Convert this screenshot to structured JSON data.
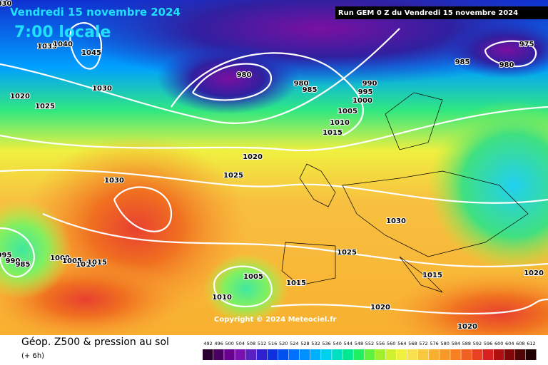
{
  "header": {
    "date": "Vendredi 15 novembre 2024",
    "time": "7:00 locale",
    "run": "Run GEM 0 Z du Vendredi 15 novembre 2024"
  },
  "footer": {
    "title": "Géop. Z500 & pression au sol",
    "lead": "(+ 6h)",
    "copyright": "Copyright © 2024 Meteociel.fr"
  },
  "isobar_labels": [
    "030",
    "1035",
    "1040",
    "1045",
    "1030",
    "1020",
    "1025",
    "980",
    "980",
    "985",
    "990",
    "995",
    "1000",
    "1005",
    "1010",
    "1015",
    "975",
    "985",
    "980",
    "1020",
    "1025",
    "1030",
    "1030",
    "1025",
    "1015",
    "1020",
    "995",
    "990",
    "985",
    "1000",
    "1005",
    "1010",
    "1015",
    "1005",
    "1010",
    "1015",
    "1020",
    "1020"
  ],
  "scale": {
    "values": [
      492,
      496,
      500,
      504,
      508,
      512,
      516,
      520,
      524,
      528,
      532,
      536,
      540,
      544,
      548,
      552,
      556,
      560,
      564,
      568,
      572,
      576,
      580,
      584,
      588,
      592,
      596,
      600,
      604,
      608,
      612
    ],
    "colors": [
      "#2a0030",
      "#4a0060",
      "#6a0090",
      "#7a10b0",
      "#5a20c0",
      "#3020d0",
      "#1030e0",
      "#0050f0",
      "#0070ff",
      "#0090ff",
      "#00b0ff",
      "#00d0f0",
      "#00e0c0",
      "#00e890",
      "#20f060",
      "#60f040",
      "#a0f030",
      "#d0f030",
      "#f0f040",
      "#f8e050",
      "#f8c840",
      "#f8b030",
      "#f89828",
      "#f88020",
      "#f06020",
      "#e84020",
      "#d82020",
      "#b01010",
      "#800808",
      "#500404",
      "#200000"
    ]
  }
}
